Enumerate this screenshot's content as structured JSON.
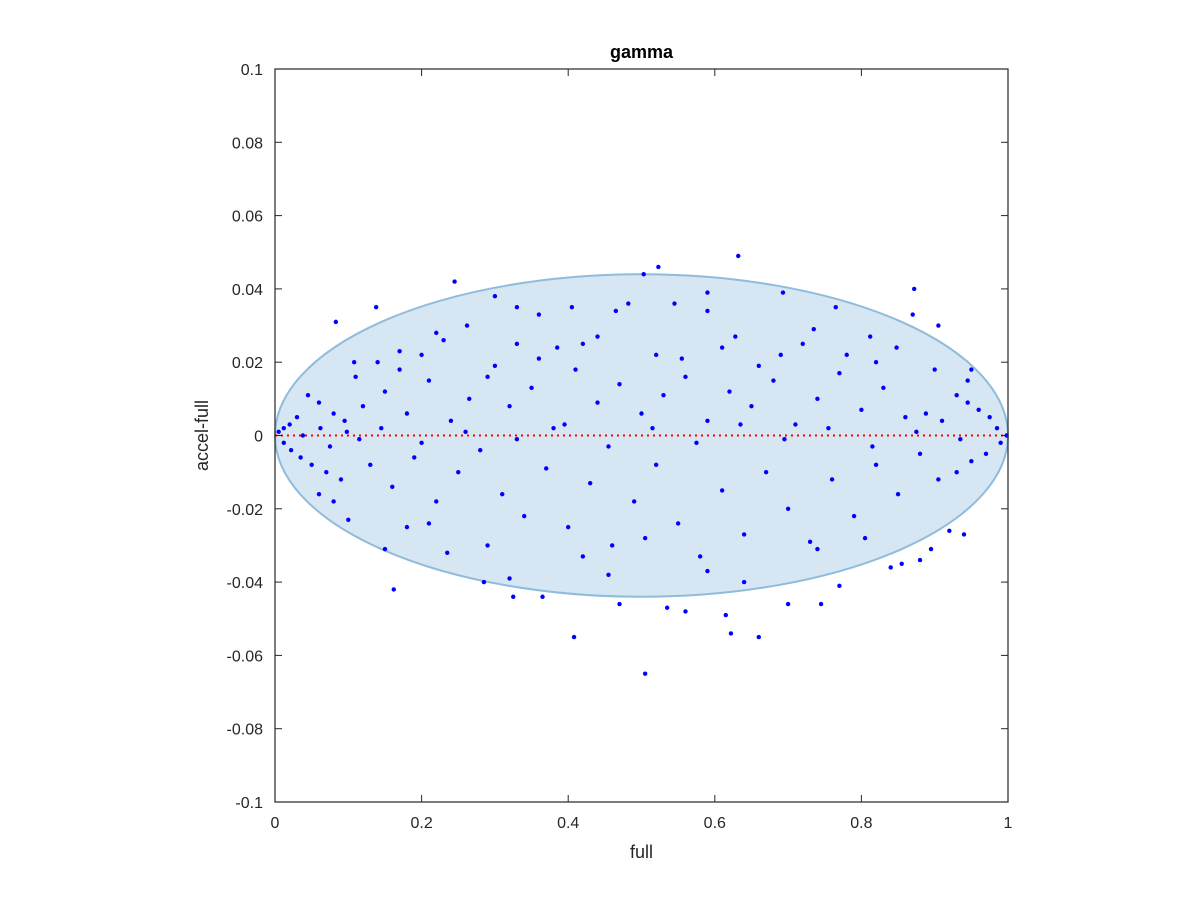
{
  "chart_data": {
    "type": "scatter",
    "title": "gamma",
    "xlabel": "full",
    "ylabel": "accel-full",
    "xlim": [
      0,
      1
    ],
    "ylim": [
      -0.1,
      0.1
    ],
    "x_ticks": [
      0,
      0.2,
      0.4,
      0.6,
      0.8,
      1
    ],
    "x_tick_labels": [
      "0",
      "0.2",
      "0.4",
      "0.6",
      "0.8",
      "1"
    ],
    "y_ticks": [
      -0.1,
      -0.08,
      -0.06,
      -0.04,
      -0.02,
      0,
      0.02,
      0.04,
      0.06,
      0.08,
      0.1
    ],
    "y_tick_labels": [
      "-0.1",
      "-0.08",
      "-0.06",
      "-0.04",
      "-0.02",
      "0",
      "0.02",
      "0.04",
      "0.06",
      "0.08",
      "0.1"
    ],
    "grid": false,
    "colors": {
      "points": "#0000ff",
      "ellipse_fill": "#d6e6f3",
      "ellipse_edge": "#8fbcdc",
      "zero_line": "#ff0000",
      "axes": "#262626"
    },
    "ellipse": {
      "center_x": 0.5,
      "center_y": 0.0,
      "rx": 0.5,
      "ry": 0.044
    },
    "reference_line": {
      "y": 0,
      "style": "dotted"
    },
    "series": [
      {
        "points": [
          [
            0.632,
            0.049
          ],
          [
            0.523,
            0.046
          ],
          [
            0.503,
            0.044
          ],
          [
            0.245,
            0.042
          ],
          [
            0.872,
            0.04
          ],
          [
            0.693,
            0.039
          ],
          [
            0.59,
            0.039
          ],
          [
            0.3,
            0.038
          ],
          [
            0.482,
            0.036
          ],
          [
            0.545,
            0.036
          ],
          [
            0.138,
            0.035
          ],
          [
            0.33,
            0.035
          ],
          [
            0.405,
            0.035
          ],
          [
            0.765,
            0.035
          ],
          [
            0.59,
            0.034
          ],
          [
            0.465,
            0.034
          ],
          [
            0.36,
            0.033
          ],
          [
            0.87,
            0.033
          ],
          [
            0.083,
            0.031
          ],
          [
            0.905,
            0.03
          ],
          [
            0.262,
            0.03
          ],
          [
            0.735,
            0.029
          ],
          [
            0.812,
            0.027
          ],
          [
            0.44,
            0.027
          ],
          [
            0.628,
            0.027
          ],
          [
            0.22,
            0.028
          ],
          [
            0.848,
            0.024
          ],
          [
            0.17,
            0.023
          ],
          [
            0.385,
            0.024
          ],
          [
            0.69,
            0.022
          ],
          [
            0.555,
            0.021
          ],
          [
            0.108,
            0.02
          ],
          [
            0.95,
            0.018
          ],
          [
            0.3,
            0.019
          ],
          [
            0.045,
            0.011
          ],
          [
            0.06,
            0.009
          ],
          [
            0.08,
            0.006
          ],
          [
            0.095,
            0.004
          ],
          [
            0.03,
            0.005
          ],
          [
            0.02,
            0.003
          ],
          [
            0.012,
            0.002
          ],
          [
            0.005,
            0.001
          ],
          [
            0.012,
            -0.002
          ],
          [
            0.022,
            -0.004
          ],
          [
            0.035,
            -0.006
          ],
          [
            0.05,
            -0.008
          ],
          [
            0.07,
            -0.01
          ],
          [
            0.09,
            -0.012
          ],
          [
            0.985,
            0.002
          ],
          [
            0.975,
            0.005
          ],
          [
            0.96,
            0.007
          ],
          [
            0.945,
            0.009
          ],
          [
            0.93,
            0.011
          ],
          [
            0.99,
            -0.002
          ],
          [
            0.97,
            -0.005
          ],
          [
            0.95,
            -0.007
          ],
          [
            0.93,
            -0.01
          ],
          [
            0.905,
            -0.012
          ],
          [
            0.888,
            0.006
          ],
          [
            0.91,
            0.004
          ],
          [
            0.12,
            0.008
          ],
          [
            0.15,
            0.012
          ],
          [
            0.18,
            0.006
          ],
          [
            0.21,
            0.015
          ],
          [
            0.24,
            0.004
          ],
          [
            0.265,
            0.01
          ],
          [
            0.29,
            0.016
          ],
          [
            0.32,
            0.008
          ],
          [
            0.35,
            0.013
          ],
          [
            0.38,
            0.002
          ],
          [
            0.41,
            0.018
          ],
          [
            0.44,
            0.009
          ],
          [
            0.47,
            0.014
          ],
          [
            0.5,
            0.006
          ],
          [
            0.53,
            0.011
          ],
          [
            0.56,
            0.016
          ],
          [
            0.59,
            0.004
          ],
          [
            0.62,
            0.012
          ],
          [
            0.65,
            0.008
          ],
          [
            0.68,
            0.015
          ],
          [
            0.71,
            0.003
          ],
          [
            0.74,
            0.01
          ],
          [
            0.77,
            0.017
          ],
          [
            0.8,
            0.007
          ],
          [
            0.83,
            0.013
          ],
          [
            0.86,
            0.005
          ],
          [
            0.13,
            -0.008
          ],
          [
            0.16,
            -0.014
          ],
          [
            0.19,
            -0.006
          ],
          [
            0.22,
            -0.018
          ],
          [
            0.25,
            -0.01
          ],
          [
            0.28,
            -0.004
          ],
          [
            0.31,
            -0.016
          ],
          [
            0.34,
            -0.022
          ],
          [
            0.37,
            -0.009
          ],
          [
            0.4,
            -0.025
          ],
          [
            0.43,
            -0.013
          ],
          [
            0.46,
            -0.03
          ],
          [
            0.49,
            -0.018
          ],
          [
            0.52,
            -0.008
          ],
          [
            0.55,
            -0.024
          ],
          [
            0.58,
            -0.033
          ],
          [
            0.61,
            -0.015
          ],
          [
            0.64,
            -0.027
          ],
          [
            0.67,
            -0.01
          ],
          [
            0.7,
            -0.02
          ],
          [
            0.73,
            -0.029
          ],
          [
            0.76,
            -0.012
          ],
          [
            0.79,
            -0.022
          ],
          [
            0.82,
            -0.008
          ],
          [
            0.85,
            -0.016
          ],
          [
            0.88,
            -0.005
          ],
          [
            0.162,
            -0.042
          ],
          [
            0.408,
            -0.055
          ],
          [
            0.505,
            -0.065
          ],
          [
            0.615,
            -0.049
          ],
          [
            0.622,
            -0.054
          ],
          [
            0.66,
            -0.055
          ],
          [
            0.47,
            -0.046
          ],
          [
            0.535,
            -0.047
          ],
          [
            0.56,
            -0.048
          ],
          [
            0.7,
            -0.046
          ],
          [
            0.745,
            -0.046
          ],
          [
            0.325,
            -0.044
          ],
          [
            0.365,
            -0.044
          ],
          [
            0.285,
            -0.04
          ],
          [
            0.32,
            -0.039
          ],
          [
            0.77,
            -0.041
          ],
          [
            0.84,
            -0.036
          ],
          [
            0.855,
            -0.035
          ],
          [
            0.88,
            -0.034
          ],
          [
            0.895,
            -0.031
          ],
          [
            0.92,
            -0.026
          ],
          [
            0.94,
            -0.027
          ],
          [
            0.15,
            -0.031
          ],
          [
            0.18,
            -0.025
          ],
          [
            0.21,
            -0.024
          ],
          [
            0.08,
            -0.018
          ],
          [
            0.1,
            -0.023
          ],
          [
            0.06,
            -0.016
          ],
          [
            0.11,
            0.016
          ],
          [
            0.14,
            0.02
          ],
          [
            0.17,
            0.018
          ],
          [
            0.2,
            0.022
          ],
          [
            0.23,
            0.026
          ],
          [
            0.33,
            0.025
          ],
          [
            0.36,
            0.021
          ],
          [
            0.42,
            0.025
          ],
          [
            0.52,
            0.022
          ],
          [
            0.61,
            0.024
          ],
          [
            0.66,
            0.019
          ],
          [
            0.72,
            0.025
          ],
          [
            0.78,
            0.022
          ],
          [
            0.82,
            0.02
          ],
          [
            0.9,
            0.018
          ],
          [
            0.945,
            0.015
          ],
          [
            0.29,
            -0.03
          ],
          [
            0.42,
            -0.033
          ],
          [
            0.59,
            -0.037
          ],
          [
            0.64,
            -0.04
          ],
          [
            0.74,
            -0.031
          ],
          [
            0.805,
            -0.028
          ],
          [
            0.235,
            -0.032
          ],
          [
            0.455,
            -0.038
          ],
          [
            0.505,
            -0.028
          ],
          [
            0.038,
            0.0
          ],
          [
            0.062,
            0.002
          ],
          [
            0.075,
            -0.003
          ],
          [
            0.098,
            0.001
          ],
          [
            0.115,
            -0.001
          ],
          [
            0.145,
            0.002
          ],
          [
            0.2,
            -0.002
          ],
          [
            0.26,
            0.001
          ],
          [
            0.33,
            -0.001
          ],
          [
            0.395,
            0.003
          ],
          [
            0.455,
            -0.003
          ],
          [
            0.515,
            0.002
          ],
          [
            0.575,
            -0.002
          ],
          [
            0.635,
            0.003
          ],
          [
            0.695,
            -0.001
          ],
          [
            0.755,
            0.002
          ],
          [
            0.815,
            -0.003
          ],
          [
            0.875,
            0.001
          ],
          [
            0.935,
            -0.001
          ],
          [
            0.998,
            0.0
          ]
        ]
      }
    ]
  }
}
